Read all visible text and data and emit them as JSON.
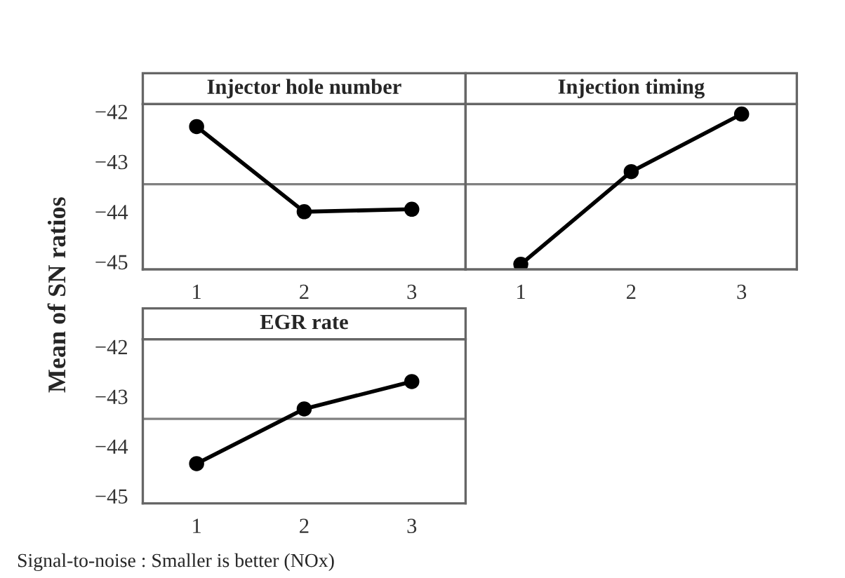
{
  "chart_data": [
    {
      "type": "line",
      "title": "Injector hole number",
      "ylabel": "Mean of SN ratios",
      "x": [
        1,
        2,
        3
      ],
      "xlim": [
        0.5,
        3.5
      ],
      "xticks": [
        1,
        2,
        3
      ],
      "ylim": [
        -45.15,
        -41.85
      ],
      "yticks": [
        -45,
        -44,
        -43,
        -42
      ],
      "marker": "circle",
      "grid": false,
      "series": [
        {
          "color": "#000000",
          "values": [
            -42.3,
            -44.0,
            -43.95
          ]
        }
      ],
      "ref_lines": [
        {
          "axis": "y",
          "value": -43.45,
          "color": "#808080"
        }
      ]
    },
    {
      "type": "line",
      "title": "Injection timing",
      "x": [
        1,
        2,
        3
      ],
      "xlim": [
        0.5,
        3.5
      ],
      "xticks": [
        1,
        2,
        3
      ],
      "ylim": [
        -45.15,
        -41.85
      ],
      "yticks": [
        -45,
        -44,
        -43,
        -42
      ],
      "tick_labels": "x",
      "marker": "circle",
      "grid": false,
      "series": [
        {
          "color": "#000000",
          "values": [
            -45.05,
            -43.2,
            -42.05
          ]
        }
      ],
      "ref_lines": [
        {
          "axis": "y",
          "value": -43.45,
          "color": "#808080"
        }
      ]
    },
    {
      "type": "line",
      "title": "EGR rate",
      "x": [
        1,
        2,
        3
      ],
      "xlim": [
        0.5,
        3.5
      ],
      "xticks": [
        1,
        2,
        3
      ],
      "ylim": [
        -45.15,
        -41.85
      ],
      "yticks": [
        -45,
        -44,
        -43,
        -42
      ],
      "marker": "circle",
      "grid": false,
      "series": [
        {
          "color": "#000000",
          "values": [
            -44.35,
            -43.25,
            -42.7
          ]
        }
      ],
      "ref_lines": [
        {
          "axis": "y",
          "value": -43.45,
          "color": "#808080"
        }
      ],
      "annotations": [
        "Signal-to-noise : Smaller is better (NOx)"
      ]
    }
  ]
}
